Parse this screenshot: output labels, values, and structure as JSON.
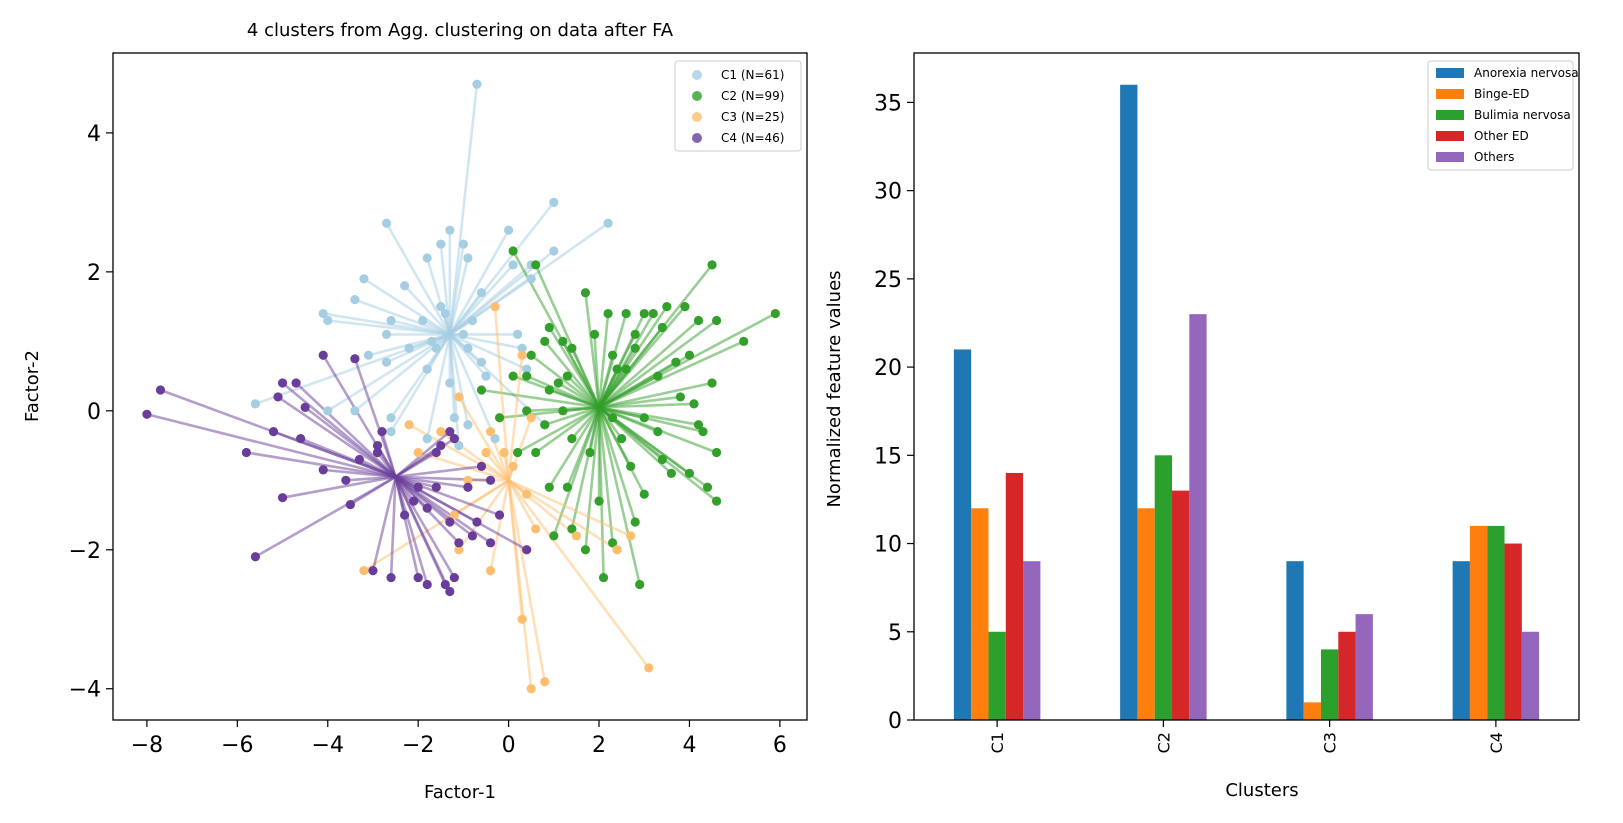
{
  "chart_data": [
    {
      "type": "scatter",
      "title": "4 clusters from Agg. clustering on data after FA",
      "xlabel": "Factor-1",
      "ylabel": "Factor-2",
      "xlim": [
        -8.75,
        6.6
      ],
      "ylim": [
        -4.45,
        5.15
      ],
      "xticks": [
        -8,
        -6,
        -4,
        -2,
        0,
        2,
        4,
        6
      ],
      "yticks": [
        -4,
        -2,
        0,
        2,
        4
      ],
      "grid": false,
      "legend_position": "top-right",
      "series": [
        {
          "name": "C1 (N=61)",
          "color": "#a6cee3",
          "centroid": [
            -1.3,
            1.1
          ],
          "points": [
            [
              -0.7,
              4.7
            ],
            [
              1.0,
              3.0
            ],
            [
              2.2,
              2.7
            ],
            [
              -2.7,
              2.7
            ],
            [
              -1.3,
              2.6
            ],
            [
              0.0,
              2.6
            ],
            [
              -1.0,
              2.4
            ],
            [
              -1.5,
              2.4
            ],
            [
              -0.9,
              2.2
            ],
            [
              -1.8,
              2.2
            ],
            [
              1.0,
              2.3
            ],
            [
              0.1,
              2.1
            ],
            [
              0.5,
              2.1
            ],
            [
              -3.2,
              1.9
            ],
            [
              -2.3,
              1.8
            ],
            [
              -3.4,
              1.6
            ],
            [
              -1.5,
              1.5
            ],
            [
              -4.1,
              1.4
            ],
            [
              -4.0,
              1.3
            ],
            [
              -2.6,
              1.3
            ],
            [
              -1.9,
              1.3
            ],
            [
              -1.4,
              1.4
            ],
            [
              -0.8,
              1.3
            ],
            [
              -2.7,
              1.1
            ],
            [
              -1.0,
              1.1
            ],
            [
              0.2,
              1.1
            ],
            [
              -1.7,
              1.0
            ],
            [
              -2.2,
              0.9
            ],
            [
              -1.6,
              0.9
            ],
            [
              -0.9,
              0.9
            ],
            [
              -3.1,
              0.8
            ],
            [
              -2.7,
              0.7
            ],
            [
              -1.8,
              0.6
            ],
            [
              -0.6,
              0.7
            ],
            [
              0.4,
              0.6
            ],
            [
              -0.5,
              0.5
            ],
            [
              -1.3,
              0.4
            ],
            [
              -5.6,
              0.1
            ],
            [
              -4.0,
              0.0
            ],
            [
              -3.4,
              0.0
            ],
            [
              -2.6,
              -0.1
            ],
            [
              -1.2,
              -0.1
            ],
            [
              -0.9,
              -0.2
            ],
            [
              0.8,
              -0.2
            ],
            [
              -2.6,
              -0.3
            ],
            [
              -1.8,
              -0.4
            ],
            [
              -1.1,
              -0.5
            ],
            [
              -0.3,
              -0.4
            ],
            [
              0.3,
              0.9
            ],
            [
              -0.6,
              1.7
            ],
            [
              0.5,
              1.9
            ]
          ]
        },
        {
          "name": "C2 (N=99)",
          "color": "#33a02c",
          "centroid": [
            2.0,
            0.05
          ],
          "points": [
            [
              4.5,
              2.1
            ],
            [
              5.9,
              1.4
            ],
            [
              5.2,
              1.0
            ],
            [
              1.7,
              1.7
            ],
            [
              3.9,
              1.5
            ],
            [
              3.5,
              1.5
            ],
            [
              3.0,
              1.4
            ],
            [
              2.2,
              1.4
            ],
            [
              2.6,
              1.4
            ],
            [
              4.2,
              1.3
            ],
            [
              4.6,
              1.3
            ],
            [
              0.9,
              1.2
            ],
            [
              3.4,
              1.2
            ],
            [
              1.9,
              1.1
            ],
            [
              2.8,
              1.1
            ],
            [
              1.2,
              1.0
            ],
            [
              0.8,
              1.0
            ],
            [
              1.4,
              0.9
            ],
            [
              0.5,
              0.8
            ],
            [
              2.3,
              0.8
            ],
            [
              3.7,
              0.7
            ],
            [
              4.0,
              0.8
            ],
            [
              2.4,
              0.6
            ],
            [
              2.6,
              0.6
            ],
            [
              3.3,
              0.5
            ],
            [
              4.5,
              0.4
            ],
            [
              1.3,
              0.5
            ],
            [
              0.1,
              0.5
            ],
            [
              -0.6,
              0.3
            ],
            [
              0.9,
              0.3
            ],
            [
              3.8,
              0.2
            ],
            [
              4.1,
              0.1
            ],
            [
              0.4,
              0.0
            ],
            [
              1.2,
              0.0
            ],
            [
              2.3,
              -0.1
            ],
            [
              3.0,
              -0.1
            ],
            [
              4.2,
              -0.2
            ],
            [
              -0.2,
              -0.1
            ],
            [
              0.8,
              -0.2
            ],
            [
              1.4,
              -0.4
            ],
            [
              2.5,
              -0.4
            ],
            [
              3.3,
              -0.3
            ],
            [
              4.3,
              -0.3
            ],
            [
              4.6,
              -0.6
            ],
            [
              0.6,
              -0.6
            ],
            [
              1.8,
              -0.6
            ],
            [
              2.7,
              -0.8
            ],
            [
              3.4,
              -0.7
            ],
            [
              4.0,
              -0.9
            ],
            [
              4.4,
              -1.1
            ],
            [
              0.9,
              -1.1
            ],
            [
              1.3,
              -1.1
            ],
            [
              2.0,
              -1.3
            ],
            [
              3.0,
              -1.2
            ],
            [
              4.6,
              -1.3
            ],
            [
              1.0,
              -1.8
            ],
            [
              1.4,
              -1.7
            ],
            [
              2.8,
              -1.6
            ],
            [
              2.3,
              -1.9
            ],
            [
              1.7,
              -2.0
            ],
            [
              2.1,
              -2.4
            ],
            [
              2.9,
              -2.5
            ],
            [
              0.2,
              -0.6
            ],
            [
              0.1,
              2.3
            ],
            [
              0.6,
              2.1
            ],
            [
              0.4,
              0.5
            ],
            [
              3.6,
              -0.9
            ],
            [
              1.1,
              0.4
            ],
            [
              2.8,
              0.9
            ],
            [
              3.2,
              1.4
            ]
          ]
        },
        {
          "name": "C3 (N=25)",
          "color": "#fdbf6f",
          "centroid": [
            0.0,
            -1.0
          ],
          "points": [
            [
              -0.3,
              1.5
            ],
            [
              0.3,
              0.8
            ],
            [
              -1.1,
              0.2
            ],
            [
              -2.2,
              -0.2
            ],
            [
              -1.5,
              -0.3
            ],
            [
              0.5,
              -0.1
            ],
            [
              -0.4,
              -0.3
            ],
            [
              -0.5,
              -0.6
            ],
            [
              -0.1,
              -0.6
            ],
            [
              1.5,
              -1.8
            ],
            [
              2.4,
              -2.0
            ],
            [
              -3.2,
              -2.3
            ],
            [
              -0.4,
              -2.3
            ],
            [
              0.3,
              -3.0
            ],
            [
              0.5,
              -4.0
            ],
            [
              0.8,
              -3.9
            ],
            [
              3.1,
              -3.7
            ],
            [
              2.7,
              -1.8
            ],
            [
              0.6,
              -1.7
            ],
            [
              -1.1,
              -2.0
            ],
            [
              -0.9,
              -1.0
            ],
            [
              0.1,
              -0.8
            ],
            [
              -2.0,
              -0.6
            ],
            [
              0.4,
              -1.2
            ],
            [
              -1.2,
              -1.5
            ]
          ]
        },
        {
          "name": "C4 (N=46)",
          "color": "#6a3d9a",
          "centroid": [
            -2.5,
            -0.95
          ],
          "points": [
            [
              -8.0,
              -0.05
            ],
            [
              -7.7,
              0.3
            ],
            [
              -4.1,
              0.8
            ],
            [
              -3.4,
              0.75
            ],
            [
              -5.0,
              0.4
            ],
            [
              -4.7,
              0.4
            ],
            [
              -5.1,
              0.2
            ],
            [
              -2.8,
              -0.3
            ],
            [
              -5.8,
              -0.6
            ],
            [
              -5.2,
              -0.3
            ],
            [
              -4.6,
              -0.4
            ],
            [
              -2.9,
              -0.5
            ],
            [
              -1.5,
              -0.5
            ],
            [
              -1.3,
              -0.3
            ],
            [
              -4.1,
              -0.85
            ],
            [
              -3.6,
              -1.0
            ],
            [
              -2.0,
              -1.1
            ],
            [
              -1.6,
              -1.1
            ],
            [
              -0.9,
              -1.1
            ],
            [
              -0.4,
              -1.0
            ],
            [
              -5.0,
              -1.25
            ],
            [
              -3.5,
              -1.35
            ],
            [
              -2.1,
              -1.3
            ],
            [
              -1.8,
              -1.4
            ],
            [
              -1.3,
              -1.6
            ],
            [
              -0.7,
              -1.6
            ],
            [
              -1.1,
              -1.9
            ],
            [
              -0.8,
              -1.8
            ],
            [
              -0.4,
              -1.9
            ],
            [
              -5.6,
              -2.1
            ],
            [
              -3.0,
              -2.3
            ],
            [
              -2.6,
              -2.4
            ],
            [
              -1.8,
              -2.5
            ],
            [
              -1.4,
              -2.5
            ],
            [
              -1.3,
              -2.6
            ],
            [
              -2.0,
              -2.4
            ],
            [
              -2.9,
              -0.6
            ],
            [
              -0.6,
              -0.8
            ],
            [
              -1.2,
              -2.4
            ],
            [
              -2.3,
              -1.5
            ],
            [
              -0.2,
              -1.5
            ],
            [
              0.4,
              -2.0
            ],
            [
              -1.2,
              -0.4
            ],
            [
              -3.3,
              -0.7
            ],
            [
              -4.5,
              0.05
            ],
            [
              -1.6,
              -0.6
            ]
          ]
        }
      ]
    },
    {
      "type": "bar",
      "title": "",
      "xlabel": "Clusters",
      "ylabel": "Normalized feature values",
      "ylim": [
        0,
        37.8
      ],
      "yticks": [
        0,
        5,
        10,
        15,
        20,
        25,
        30,
        35
      ],
      "categories": [
        "C1",
        "C2",
        "C3",
        "C4"
      ],
      "grid": false,
      "legend_position": "top-right",
      "series": [
        {
          "name": "Anorexia nervosa",
          "color": "#1f77b4",
          "values": [
            21,
            36,
            9,
            9
          ]
        },
        {
          "name": "Binge-ED",
          "color": "#ff7f0e",
          "values": [
            12,
            12,
            1,
            11
          ]
        },
        {
          "name": "Bulimia nervosa",
          "color": "#2ca02c",
          "values": [
            5,
            15,
            4,
            11
          ]
        },
        {
          "name": "Other ED",
          "color": "#d62728",
          "values": [
            14,
            13,
            5,
            10
          ]
        },
        {
          "name": "Others",
          "color": "#9467bd",
          "values": [
            9,
            23,
            6,
            5
          ]
        }
      ]
    }
  ]
}
